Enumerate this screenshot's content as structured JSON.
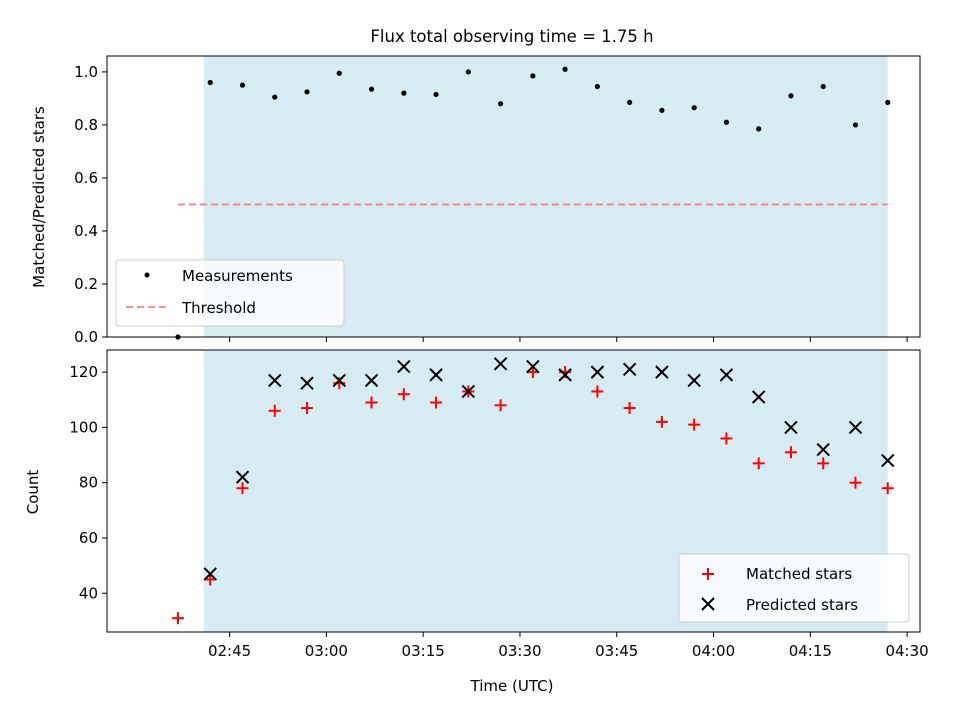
{
  "chart_data": [
    {
      "type": "scatter",
      "title": "Flux total observing time = 1.75 h",
      "xlabel": "",
      "ylabel": "Matched/Predicted stars",
      "ylim": [
        0,
        1.06
      ],
      "ytick_values": [
        0.0,
        0.2,
        0.4,
        0.6,
        0.8,
        1.0
      ],
      "ytick_labels": [
        "0.0",
        "0.2",
        "0.4",
        "0.6",
        "0.8",
        "1.0"
      ],
      "shaded_region": {
        "x_start": "02:41",
        "x_end": "04:27",
        "color": "#add8e6"
      },
      "legend_position": "lower left",
      "series": [
        {
          "name": "Measurements",
          "marker": "dot",
          "color": "#000000",
          "x": [
            "02:37",
            "02:42",
            "02:47",
            "02:52",
            "02:57",
            "03:02",
            "03:07",
            "03:12",
            "03:17",
            "03:22",
            "03:27",
            "03:32",
            "03:37",
            "03:42",
            "03:47",
            "03:52",
            "03:57",
            "04:02",
            "04:07",
            "04:12",
            "04:17",
            "04:22",
            "04:27"
          ],
          "y": [
            0.0,
            0.96,
            0.95,
            0.905,
            0.925,
            0.995,
            0.935,
            0.92,
            0.915,
            1.0,
            0.88,
            0.985,
            1.01,
            0.945,
            0.885,
            0.855,
            0.865,
            0.81,
            0.785,
            0.91,
            0.945,
            0.8,
            0.885
          ]
        },
        {
          "name": "Threshold",
          "marker": "dashed-line",
          "color": "#ff7f7f",
          "x": [
            "02:37",
            "04:27"
          ],
          "y": [
            0.5,
            0.5
          ]
        }
      ]
    },
    {
      "type": "scatter",
      "title": "",
      "xlabel": "Time (UTC)",
      "ylabel": "Count",
      "ylim": [
        26,
        128
      ],
      "ytick_values": [
        40,
        60,
        80,
        100,
        120
      ],
      "ytick_labels": [
        "40",
        "60",
        "80",
        "100",
        "120"
      ],
      "xlim": [
        "02:26",
        "04:32"
      ],
      "xtick_values": [
        "02:45",
        "03:00",
        "03:15",
        "03:30",
        "03:45",
        "04:00",
        "04:15",
        "04:30"
      ],
      "xtick_labels": [
        "02:45",
        "03:00",
        "03:15",
        "03:30",
        "03:45",
        "04:00",
        "04:15",
        "04:30"
      ],
      "shaded_region": {
        "x_start": "02:41",
        "x_end": "04:27",
        "color": "#add8e6"
      },
      "legend_position": "lower right",
      "series": [
        {
          "name": "Matched stars",
          "marker": "plus",
          "color": "#ff0000",
          "x": [
            "02:37",
            "02:42",
            "02:47",
            "02:52",
            "02:57",
            "03:02",
            "03:07",
            "03:12",
            "03:17",
            "03:22",
            "03:27",
            "03:32",
            "03:37",
            "03:42",
            "03:47",
            "03:52",
            "03:57",
            "04:02",
            "04:07",
            "04:12",
            "04:17",
            "04:22",
            "04:27"
          ],
          "y": [
            31,
            45,
            78,
            106,
            107,
            116,
            109,
            112,
            109,
            113,
            108,
            120,
            120,
            113,
            107,
            102,
            101,
            96,
            87,
            91,
            87,
            80,
            78
          ]
        },
        {
          "name": "Predicted stars",
          "marker": "x",
          "color": "#000000",
          "x": [
            "02:42",
            "02:47",
            "02:52",
            "02:57",
            "03:02",
            "03:07",
            "03:12",
            "03:17",
            "03:22",
            "03:27",
            "03:32",
            "03:37",
            "03:42",
            "03:47",
            "03:52",
            "03:57",
            "04:02",
            "04:07",
            "04:12",
            "04:17",
            "04:22",
            "04:27"
          ],
          "y": [
            47,
            82,
            117,
            116,
            117,
            117,
            122,
            119,
            113,
            123,
            122,
            119,
            120,
            121,
            120,
            117,
            119,
            111,
            100,
            92,
            100,
            88
          ]
        }
      ]
    }
  ]
}
